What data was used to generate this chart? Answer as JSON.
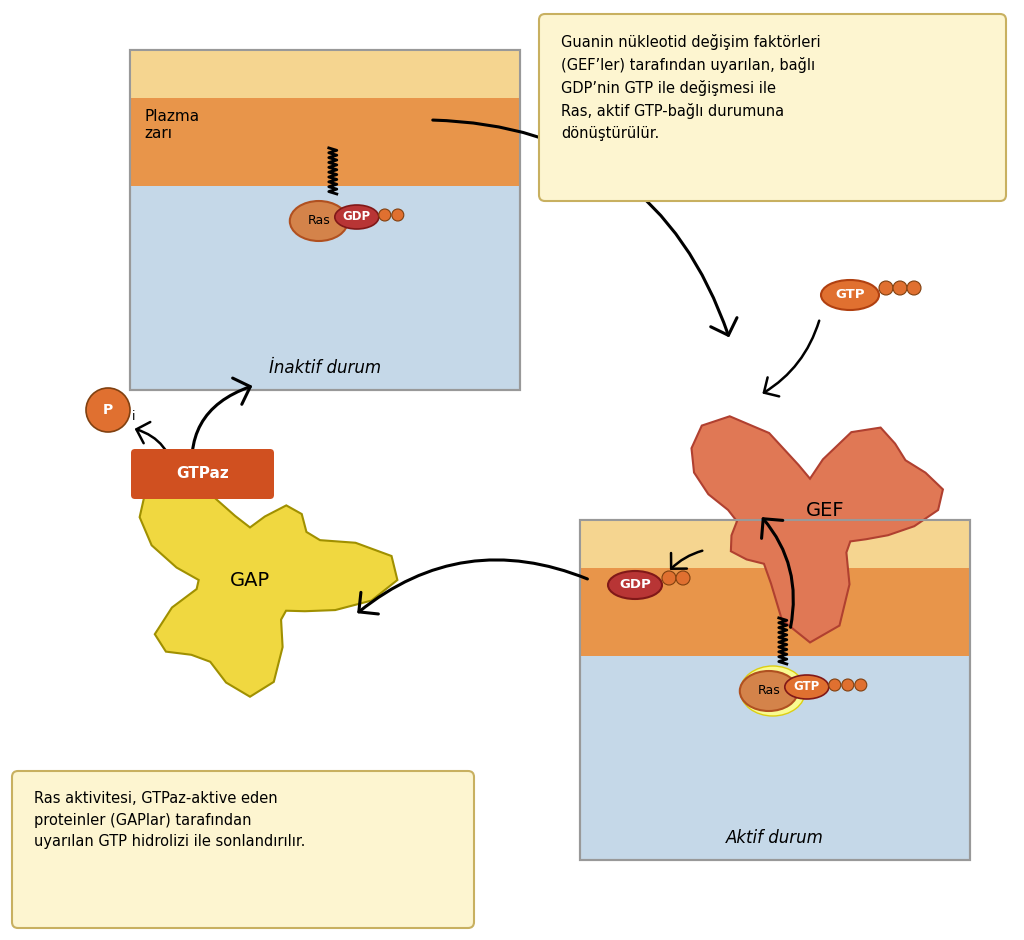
{
  "bg_color": "#ffffff",
  "membrane_top_color": "#f5d590",
  "membrane_mid_color": "#e8954a",
  "membrane_bot_color": "#c5d8e8",
  "box_bg_color": "#fdf5d0",
  "box_border_color": "#c8b060",
  "ras_color": "#d4834a",
  "gdp_color": "#b83535",
  "gtp_color_free": "#e07030",
  "gtp_color_bound": "#e07030",
  "gef_color": "#e07855",
  "gap_color": "#f0d840",
  "phosphate_color": "#e07030",
  "label_bg_orange": "#d05020",
  "top_right_text": "Guanin nükleotid değişim faktörleri\n(GEF’ler) tarafından uyarılan, bağlı\nGDP’nin GTP ile değişmesi ile\nRas, aktif GTP-bağlı durumuna\ndönüştürülür.",
  "bottom_left_text": "Ras aktivitesi, GTPaz-aktive eden\nproteinler (GAPlar) tarafından\nuyarılan GTP hidrolizi ile sonlandırılır.",
  "inaktif_label": "İnaktif durum",
  "aktif_label": "Aktif durum",
  "plazma_label": "Plazma\nzarı",
  "gef_label": "GEF",
  "gap_label": "GAP",
  "gtp_label": "GTP",
  "gdp_label": "GDP",
  "gtpaz_label": "GTPaz",
  "ras_label": "Ras",
  "pi_label": "P"
}
